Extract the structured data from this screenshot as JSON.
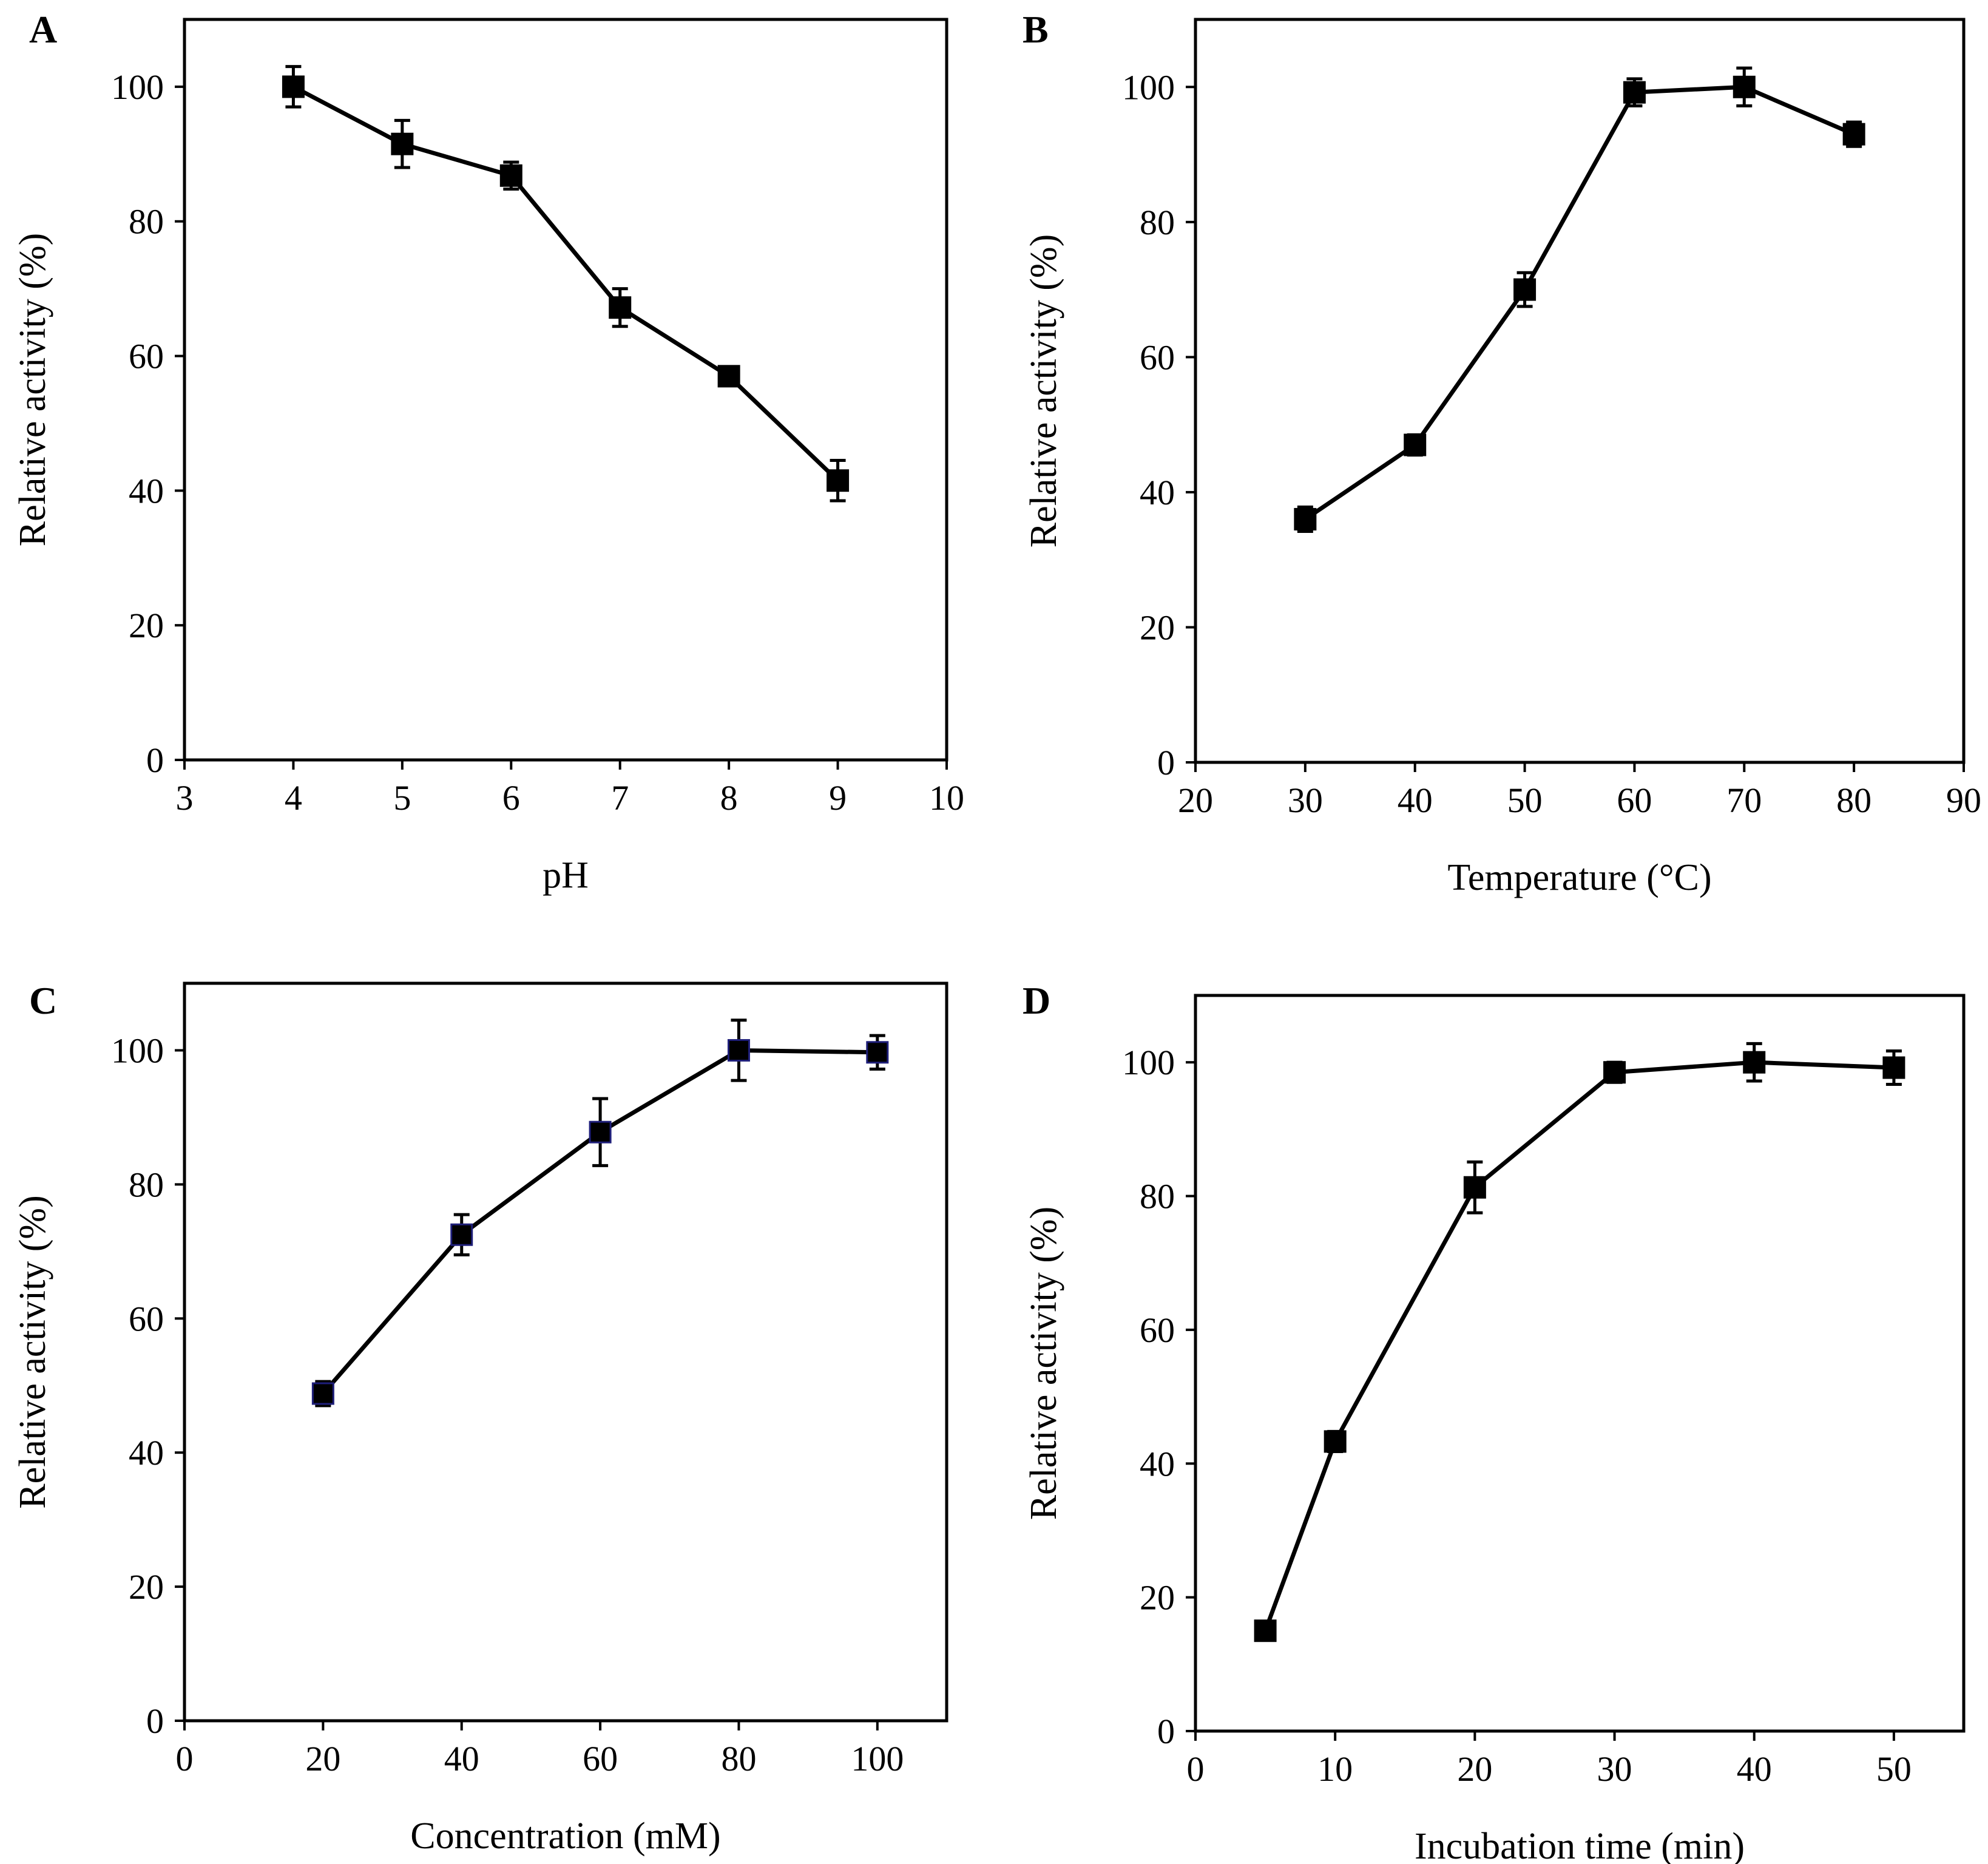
{
  "colors": {
    "ink": "#000000",
    "background": "#ffffff",
    "marker_edge_c": "#1f1f7a"
  },
  "chart_data": [
    {
      "panel": "A",
      "type": "line",
      "xlabel": "pH",
      "ylabel": "Relative activity (%)",
      "xlim": [
        3,
        10
      ],
      "ylim": [
        0,
        110
      ],
      "x_ticks": [
        3,
        4,
        5,
        6,
        7,
        8,
        9,
        10
      ],
      "y_ticks": [
        0,
        20,
        40,
        60,
        80,
        100
      ],
      "grid": false,
      "marker": "square",
      "series": [
        {
          "name": "Relative activity",
          "x": [
            4,
            5,
            6,
            7,
            8,
            9
          ],
          "values": [
            100,
            91.5,
            86.8,
            67.2,
            57.0,
            41.5
          ],
          "error": [
            3.0,
            3.5,
            2.0,
            2.8,
            0.8,
            3.0
          ]
        }
      ]
    },
    {
      "panel": "B",
      "type": "line",
      "xlabel": "Temperature (°C)",
      "ylabel": "Relative activity (%)",
      "xlim": [
        20,
        90
      ],
      "ylim": [
        0,
        110
      ],
      "x_ticks": [
        20,
        30,
        40,
        50,
        60,
        70,
        80,
        90
      ],
      "y_ticks": [
        0,
        20,
        40,
        60,
        80,
        100
      ],
      "grid": false,
      "marker": "square",
      "series": [
        {
          "name": "Relative activity",
          "x": [
            30,
            40,
            50,
            60,
            70,
            80
          ],
          "values": [
            36.0,
            47.0,
            70.0,
            99.2,
            100,
            93.0
          ],
          "error": [
            1.8,
            1.5,
            2.5,
            2.0,
            2.8,
            1.8
          ]
        }
      ]
    },
    {
      "panel": "C",
      "type": "line",
      "xlabel": "Concentration (mM)",
      "ylabel": "Relative activity (%)",
      "xlim": [
        0,
        110
      ],
      "ylim": [
        0,
        110
      ],
      "x_ticks": [
        0,
        20,
        40,
        60,
        80,
        100
      ],
      "y_ticks": [
        0,
        20,
        40,
        60,
        80,
        100
      ],
      "grid": false,
      "marker": "square",
      "series": [
        {
          "name": "Relative activity",
          "x": [
            20,
            40,
            60,
            80,
            100
          ],
          "values": [
            48.8,
            72.5,
            87.8,
            100,
            99.7
          ],
          "error": [
            1.8,
            3.0,
            5.0,
            4.5,
            2.5
          ]
        }
      ]
    },
    {
      "panel": "D",
      "type": "line",
      "xlabel": "Incubation time (min)",
      "ylabel": "Relative activity (%)",
      "xlim": [
        0,
        55
      ],
      "ylim": [
        0,
        110
      ],
      "x_ticks": [
        0,
        10,
        20,
        30,
        40,
        50
      ],
      "y_ticks": [
        0,
        20,
        40,
        60,
        80,
        100
      ],
      "grid": false,
      "marker": "square",
      "series": [
        {
          "name": "Relative activity",
          "x": [
            5,
            10,
            20,
            30,
            40,
            50
          ],
          "values": [
            15.0,
            43.3,
            81.3,
            98.5,
            100,
            99.2
          ],
          "error": [
            0.8,
            1.5,
            3.8,
            1.5,
            2.8,
            2.5
          ]
        }
      ]
    }
  ]
}
